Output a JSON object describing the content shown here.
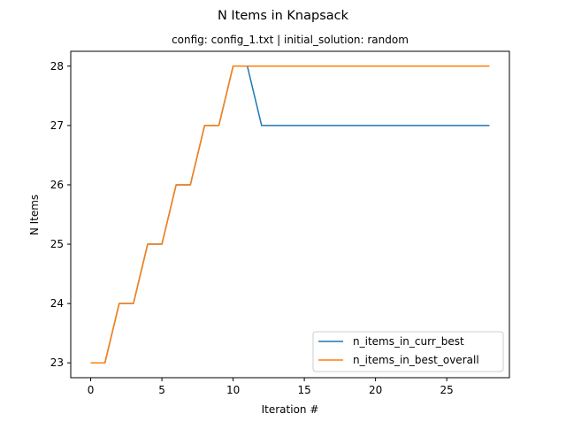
{
  "chart_data": {
    "type": "line",
    "title": "N Items in Knapsack",
    "subtitle": "config: config_1.txt | initial_solution: random",
    "xlabel": "Iteration #",
    "ylabel": "N Items",
    "xlim": [
      -1.4,
      29.4
    ],
    "ylim": [
      22.75,
      28.25
    ],
    "xticks": [
      0,
      5,
      10,
      15,
      20,
      25
    ],
    "yticks": [
      23,
      24,
      25,
      26,
      27,
      28
    ],
    "grid": false,
    "legend_position": "lower-right",
    "x": [
      0,
      1,
      2,
      3,
      4,
      5,
      6,
      7,
      8,
      9,
      10,
      11,
      12,
      13,
      14,
      15,
      16,
      17,
      18,
      19,
      20,
      21,
      22,
      23,
      24,
      25,
      26,
      27,
      28
    ],
    "series": [
      {
        "name": "n_items_in_curr_best",
        "color": "#1f77b4",
        "values": [
          23,
          23,
          24,
          24,
          25,
          25,
          26,
          26,
          27,
          27,
          28,
          28,
          27,
          27,
          27,
          27,
          27,
          27,
          27,
          27,
          27,
          27,
          27,
          27,
          27,
          27,
          27,
          27,
          27
        ]
      },
      {
        "name": "n_items_in_best_overall",
        "color": "#ff7f0e",
        "values": [
          23,
          23,
          24,
          24,
          25,
          25,
          26,
          26,
          27,
          27,
          28,
          28,
          28,
          28,
          28,
          28,
          28,
          28,
          28,
          28,
          28,
          28,
          28,
          28,
          28,
          28,
          28,
          28,
          28
        ]
      }
    ]
  }
}
